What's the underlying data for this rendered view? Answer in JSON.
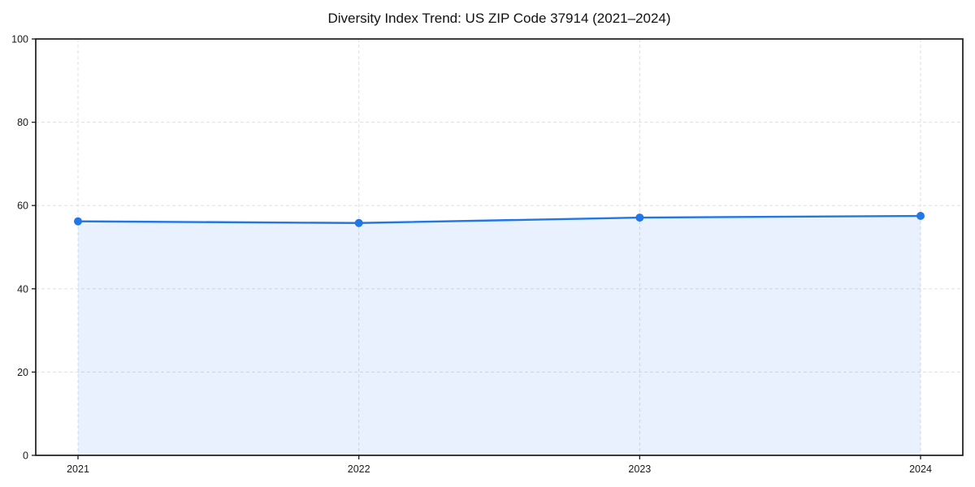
{
  "figure": {
    "title": "Diversity Index Trend: US ZIP Code 37914 (2021–2024)"
  },
  "chart_data": {
    "type": "line",
    "title": "Diversity Index Trend: US ZIP Code 37914 (2021–2024)",
    "categories": [
      "2021",
      "2022",
      "2023",
      "2024"
    ],
    "series": [
      {
        "name": "Diversity Index",
        "values": [
          56.2,
          55.8,
          57.1,
          57.5
        ]
      }
    ],
    "xlabel": "",
    "ylabel": "",
    "ylim": [
      0,
      100
    ],
    "yticks": [
      0,
      20,
      40,
      60,
      80,
      100
    ],
    "grid": true,
    "grid_style": "dashed",
    "area_fill": true,
    "legend_position": "none",
    "colors": {
      "line": "#2176e8",
      "marker": "#2176e8",
      "area_fill": "rgba(33, 118, 232, 0.10)",
      "grid": "#dfdfdf",
      "spine": "#1a1a1a",
      "tick_text": "#1a1a1a",
      "title_text": "#111111",
      "background": "#ffffff"
    }
  }
}
